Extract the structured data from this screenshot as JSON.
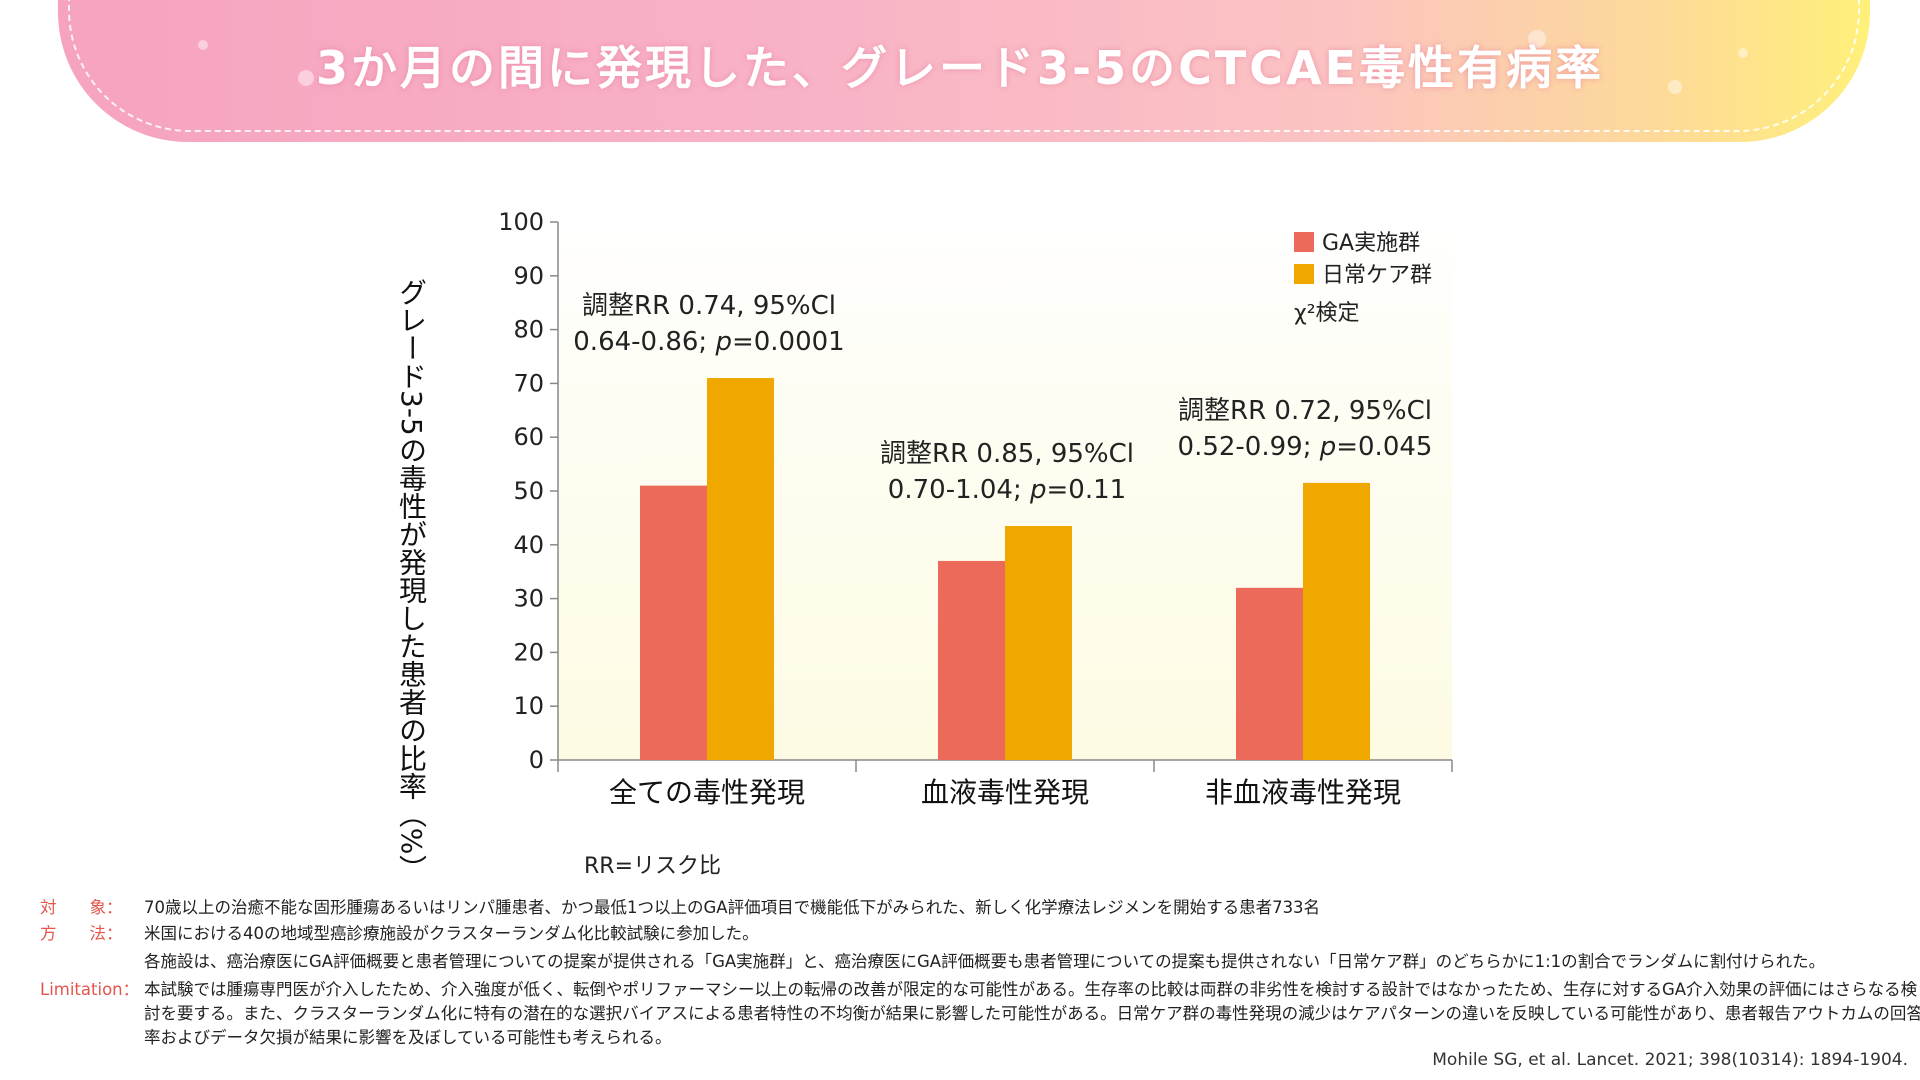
{
  "title": "3か月の間に発現した、グレード3-5のCTCAE毒性有病率",
  "chart_data": {
    "type": "bar",
    "categories": [
      "全ての毒性発現",
      "血液毒性発現",
      "非血液毒性発現"
    ],
    "series": [
      {
        "name": "GA実施群",
        "values": [
          51,
          37,
          32
        ],
        "color": "#ec6a5a"
      },
      {
        "name": "日常ケア群",
        "values": [
          71,
          43.5,
          51.5
        ],
        "color": "#f0a800"
      }
    ],
    "ylabel": "グレード3-5の毒性が発現した患者の比率（%）",
    "ylim": [
      0,
      100
    ],
    "yticks": [
      0,
      10,
      20,
      30,
      40,
      50,
      60,
      70,
      80,
      90,
      100
    ],
    "legend_placement": "top-right",
    "test_note": "χ²検定",
    "annotations": [
      {
        "line1": "調整RR 0.74, 95%Cl",
        "line2_pre": "0.64-0.86; ",
        "p_symbol": "p",
        "line2_post": "=0.0001"
      },
      {
        "line1": "調整RR 0.85, 95%Cl",
        "line2_pre": "0.70-1.04; ",
        "p_symbol": "p",
        "line2_post": "=0.11"
      },
      {
        "line1": "調整RR 0.72, 95%Cl",
        "line2_pre": "0.52-0.99; ",
        "p_symbol": "p",
        "line2_post": "=0.045"
      }
    ],
    "footnote": "RR=リスク比",
    "plot_background": "#fdfbe3"
  },
  "info": {
    "subject_key": "対　　象：",
    "subject": "70歳以上の治癒不能な固形腫瘍あるいはリンパ腫患者、かつ最低1つ以上のGA評価項目で機能低下がみられた、新しく化学療法レジメンを開始する患者733名",
    "method_key": "方　　法：",
    "method1": "米国における40の地域型癌診療施設がクラスターランダム化比較試験に参加した。",
    "method2": "各施設は、癌治療医にGA評価概要と患者管理についての提案が提供される「GA実施群」と、癌治療医にGA評価概要も患者管理についての提案も提供されない「日常ケア群」のどちらかに1:1の割合でランダムに割付けられた。",
    "limitation_key": "Limitation：",
    "limitation": "本試験では腫瘍専門医が介入したため、介入強度が低く、転倒やポリファーマシー以上の転帰の改善が限定的な可能性がある。生存率の比較は両群の非劣性を検討する設計ではなかったため、生存に対するGA介入効果の評価にはさらなる検討を要する。また、クラスターランダム化に特有の潜在的な選択バイアスによる患者特性の不均衡が結果に影響した可能性がある。日常ケア群の毒性発現の減少はケアパターンの違いを反映している可能性があり、患者報告アウトカムの回答率およびデータ欠損が結果に影響を及ぼしている可能性も考えられる。",
    "citation": "Mohile SG, et al. Lancet. 2021; 398(10314): 1894-1904."
  }
}
